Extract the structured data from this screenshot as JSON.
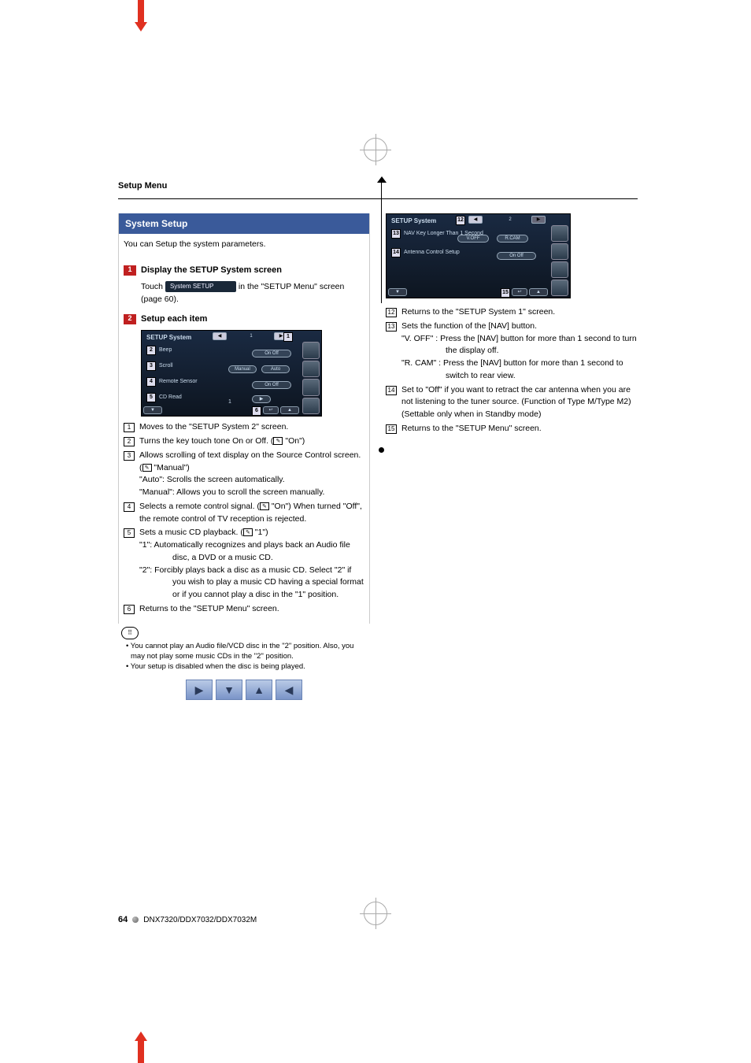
{
  "header": "Setup Menu",
  "section": {
    "title": "System Setup",
    "title_bg": "#3a5a9a",
    "intro": "You can Setup the system parameters."
  },
  "steps": [
    {
      "num": "1",
      "label": "Display the SETUP System screen",
      "body_pre": "Touch ",
      "button": "System SETUP",
      "body_post": " in the \"SETUP Menu\" screen (page 60)."
    },
    {
      "num": "2",
      "label": "Setup each item"
    }
  ],
  "step_bg": "#c02020",
  "screenshot1": {
    "title": "SETUP System",
    "page": "1",
    "rows": [
      {
        "m": "2",
        "label": "Beep",
        "pill": "On   Off"
      },
      {
        "m": "3",
        "label": "Scroll",
        "pill_l": "Manual",
        "pill_r": "Auto"
      },
      {
        "m": "4",
        "label": "Remote Sensor",
        "pill": "On   Off"
      },
      {
        "m": "5",
        "label": "CD Read",
        "pill_c": "1",
        "pill_arrow": "▶"
      }
    ],
    "corner": "1",
    "bottom_left": "▼",
    "bottom_r": [
      "6",
      "↩",
      "▲"
    ]
  },
  "screenshot2": {
    "title": "SETUP System",
    "page": "2",
    "topbtn": "12",
    "rows": [
      {
        "m": "13",
        "label": "NAV Key Longer Than 1 Second",
        "pill_l": "V.OFF",
        "pill_r": "R.CAM"
      },
      {
        "m": "14",
        "label": "Antenna Control Setup",
        "pill": "On   Off"
      }
    ],
    "bottom_left": "▼",
    "bottom_r": [
      "15",
      "↩",
      "▲"
    ]
  },
  "list1": [
    {
      "n": "1",
      "t": "Moves to the \"SETUP System 2\" screen."
    },
    {
      "n": "2",
      "t": "Turns the key touch tone On or Off. (",
      "pen": "✎",
      "t2": " \"On\")"
    },
    {
      "n": "3",
      "t": "Allows scrolling of text display on the Source Control screen. (",
      "pen": "✎",
      "t2": " \"Manual\")",
      "subs": [
        {
          "k": "\"Auto\":",
          "v": "Scrolls the screen automatically."
        },
        {
          "k": "\"Manual\":",
          "v": "Allows you to scroll the screen manually."
        }
      ]
    },
    {
      "n": "4",
      "t": "Selects a remote control signal. (",
      "pen": "✎",
      "t2": " \"On\") When turned \"Off\", the remote control of TV reception is rejected."
    },
    {
      "n": "5",
      "t": "Sets a music CD playback. (",
      "pen": "✎",
      "t2": " \"1\")",
      "subs": [
        {
          "k": "\"1\":",
          "v": "Automatically recognizes and plays back an Audio file disc, a DVD or a music CD."
        },
        {
          "k": "\"2\":",
          "v": "Forcibly plays back a disc as a music CD. Select \"2\" if you wish to play a music CD having a special format or if you cannot play a disc in the \"1\" position."
        }
      ]
    },
    {
      "n": "6",
      "t": "Returns to the \"SETUP Menu\" screen."
    }
  ],
  "notes": [
    "You cannot play an Audio file/VCD disc in the \"2\" position. Also, you may not play some music CDs in the \"2\" position.",
    "Your setup is disabled when the disc is being played."
  ],
  "thumbs": [
    "▶",
    "▼",
    "▲",
    "◀"
  ],
  "list2": [
    {
      "n": "12",
      "t": "Returns to the \"SETUP System 1\" screen."
    },
    {
      "n": "13",
      "t": "Sets the function of the [NAV] button.",
      "subs": [
        {
          "k": "\"V. OFF\" :",
          "v": "Press the [NAV] button for more than 1 second to turn the display off."
        },
        {
          "k": "\"R. CAM\" :",
          "v": "Press the [NAV] button for more than 1 second to switch to rear view."
        }
      ]
    },
    {
      "n": "14",
      "t": "Set to \"Off\" if you want to retract the car antenna when you are not listening to the tuner source. (Function of Type M/Type M2) (Settable only when in Standby mode)"
    },
    {
      "n": "15",
      "t": "Returns to the \"SETUP Menu\" screen."
    }
  ],
  "footer": {
    "page": "64",
    "model": "DNX7320/DDX7032/DDX7032M"
  }
}
